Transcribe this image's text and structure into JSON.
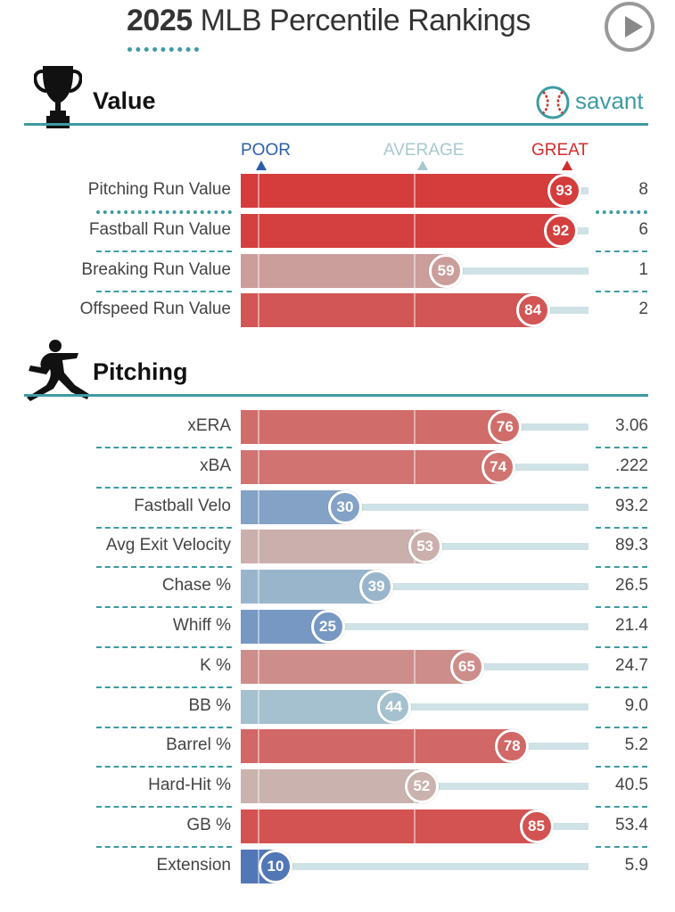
{
  "header": {
    "title_year": "2025",
    "title_rest": "MLB Percentile Rankings",
    "play_icon": "play-icon"
  },
  "colors": {
    "teal": "#3e9ba2",
    "great": "#d22d2d",
    "poor": "#2c5fa8",
    "average": "#a8c8d0"
  },
  "value_section": {
    "title": "Value",
    "icon": "trophy-icon",
    "brand": "savant",
    "brand_icon": "baseball-icon",
    "scale": {
      "poor": "POOR",
      "average": "AVERAGE",
      "great": "GREAT"
    }
  },
  "pitching_section": {
    "title": "Pitching",
    "icon": "pitcher-icon"
  },
  "chart_data": {
    "type": "bar",
    "orientation": "horizontal",
    "title": "2025 MLB Percentile Rankings",
    "xlim": [
      0,
      100
    ],
    "groups": [
      {
        "name": "Value",
        "rows": [
          {
            "label": "Pitching Run Value",
            "percentile": 93,
            "value": "8"
          },
          {
            "label": "Fastball Run Value",
            "percentile": 92,
            "value": "6"
          },
          {
            "label": "Breaking Run Value",
            "percentile": 59,
            "value": "1"
          },
          {
            "label": "Offspeed Run Value",
            "percentile": 84,
            "value": "2"
          }
        ]
      },
      {
        "name": "Pitching",
        "rows": [
          {
            "label": "xERA",
            "percentile": 76,
            "value": "3.06"
          },
          {
            "label": "xBA",
            "percentile": 74,
            "value": ".222"
          },
          {
            "label": "Fastball Velo",
            "percentile": 30,
            "value": "93.2"
          },
          {
            "label": "Avg Exit Velocity",
            "percentile": 53,
            "value": "89.3"
          },
          {
            "label": "Chase %",
            "percentile": 39,
            "value": "26.5"
          },
          {
            "label": "Whiff %",
            "percentile": 25,
            "value": "21.4"
          },
          {
            "label": "K %",
            "percentile": 65,
            "value": "24.7"
          },
          {
            "label": "BB %",
            "percentile": 44,
            "value": "9.0"
          },
          {
            "label": "Barrel %",
            "percentile": 78,
            "value": "5.2"
          },
          {
            "label": "Hard-Hit %",
            "percentile": 52,
            "value": "40.5"
          },
          {
            "label": "GB %",
            "percentile": 85,
            "value": "53.4"
          },
          {
            "label": "Extension",
            "percentile": 10,
            "value": "5.9"
          }
        ]
      }
    ]
  }
}
